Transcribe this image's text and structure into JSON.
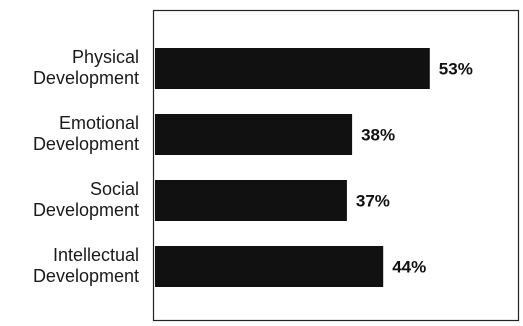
{
  "chart_data": {
    "type": "bar",
    "orientation": "horizontal",
    "categories": [
      "Physical Development",
      "Emotional Development",
      "Social Development",
      "Intellectual Development"
    ],
    "category_lines": [
      [
        "Physical",
        "Development"
      ],
      [
        "Emotional",
        "Development"
      ],
      [
        "Social",
        "Development"
      ],
      [
        "Intellectual",
        "Development"
      ]
    ],
    "values": [
      53,
      38,
      37,
      44
    ],
    "value_labels": [
      "53%",
      "38%",
      "37%",
      "44%"
    ],
    "xlim": [
      0,
      70
    ],
    "grid": false,
    "legend": false,
    "colors": {
      "bar": "#111111",
      "frame": "#222222"
    }
  }
}
